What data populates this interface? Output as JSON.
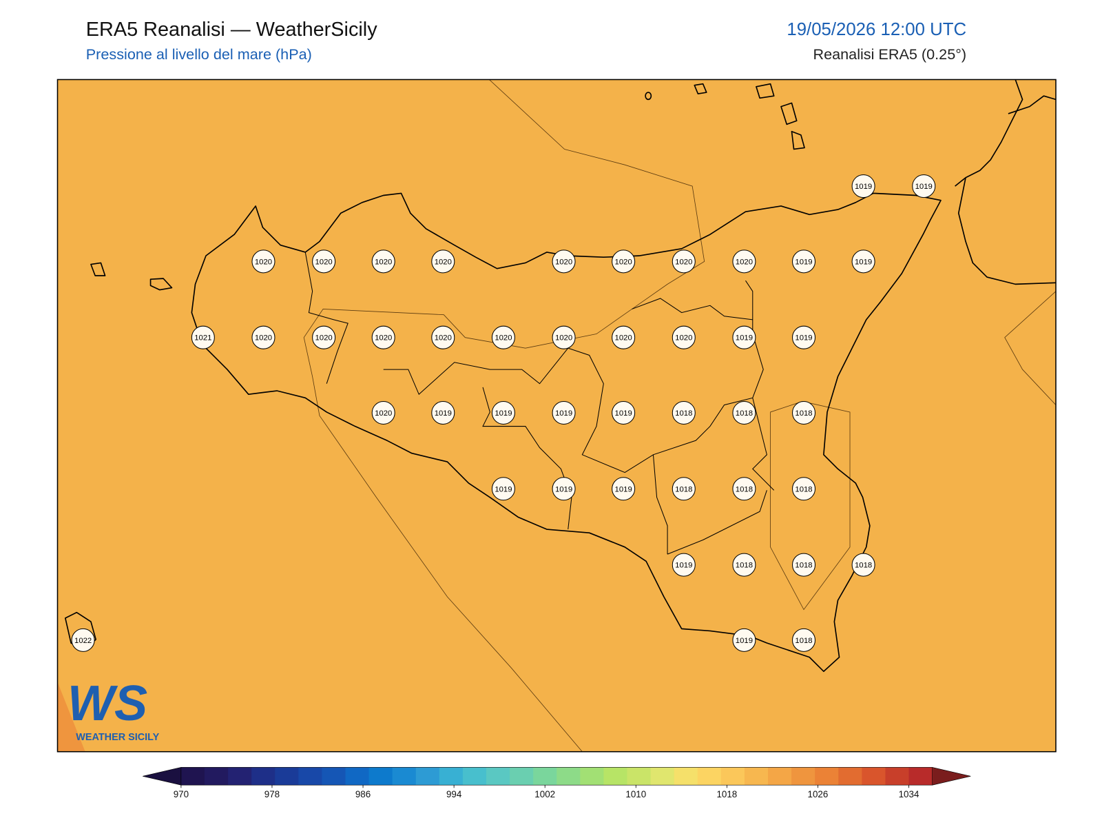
{
  "header": {
    "title": "ERA5 Reanalisi — WeatherSicily",
    "subtitle": "Pressione al livello del mare (hPa)",
    "datetime": "19/05/2026 12:00 UTC",
    "source": "Reanalisi ERA5 (0.25°)"
  },
  "map": {
    "stations": [
      1019,
      1019,
      1020,
      1020,
      1020,
      1020,
      1020,
      1020,
      1020,
      1020,
      1019,
      1019,
      1021,
      1020,
      1020,
      1020,
      1020,
      1020,
      1020,
      1020,
      1020,
      1019,
      1019,
      1020,
      1019,
      1019,
      1019,
      1019,
      1018,
      1018,
      1018,
      1019,
      1019,
      1019,
      1018,
      1018,
      1018,
      1019,
      1018,
      1018,
      1018,
      1022,
      1019,
      1018
    ]
  },
  "colorbar": {
    "ticks": [
      970,
      978,
      986,
      994,
      1002,
      1010,
      1018,
      1026,
      1034
    ],
    "colors": [
      "#1f1450",
      "#221a5f",
      "#232272",
      "#1e2f88",
      "#1a3b98",
      "#1848a8",
      "#1556b5",
      "#1068c4",
      "#0d7acc",
      "#1a8ad2",
      "#2d9bd4",
      "#38b0d3",
      "#48bfcd",
      "#5ac8c2",
      "#6acfb0",
      "#7ad69c",
      "#8ddb88",
      "#a2e074",
      "#b7e466",
      "#cae468",
      "#e0e66e",
      "#f5e06a",
      "#fcd462",
      "#fbc75a",
      "#f7b74f",
      "#f4a646",
      "#ef953e",
      "#eb8236",
      "#e26c30",
      "#d9552c",
      "#c83f2a",
      "#b82b2a"
    ],
    "under_color": "#1a1040",
    "over_color": "#7a1d1d"
  },
  "logo": {
    "mark": "WS",
    "text": "WEATHER SICILY"
  }
}
